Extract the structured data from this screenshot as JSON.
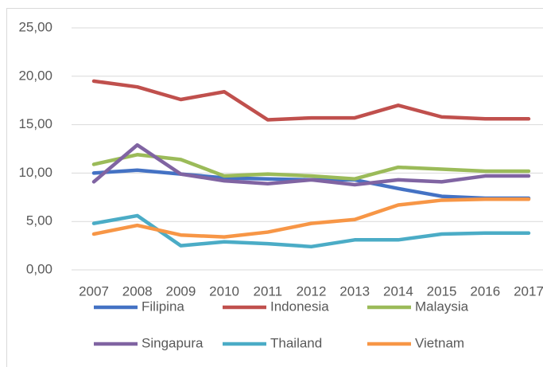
{
  "chart_data": {
    "type": "line",
    "categories": [
      "2007",
      "2008",
      "2009",
      "2010",
      "2011",
      "2012",
      "2013",
      "2014",
      "2015",
      "2016",
      "2017"
    ],
    "series": [
      {
        "name": "Filipina",
        "color": "#4472c4",
        "values": [
          10.0,
          10.3,
          9.9,
          9.5,
          9.4,
          9.3,
          9.3,
          8.4,
          7.6,
          7.4,
          7.4
        ]
      },
      {
        "name": "Indonesia",
        "color": "#c0504d",
        "values": [
          19.5,
          18.9,
          17.6,
          18.4,
          15.5,
          15.7,
          15.7,
          17.0,
          15.8,
          15.6,
          15.6
        ]
      },
      {
        "name": "Malaysia",
        "color": "#9bbb59",
        "values": [
          10.9,
          11.9,
          11.4,
          9.7,
          9.9,
          9.7,
          9.4,
          10.6,
          10.4,
          10.2,
          10.2
        ]
      },
      {
        "name": "Singapura",
        "color": "#8064a2",
        "values": [
          9.1,
          12.9,
          9.9,
          9.2,
          8.9,
          9.3,
          8.8,
          9.3,
          9.1,
          9.7,
          9.7
        ]
      },
      {
        "name": "Thailand",
        "color": "#4bacc6",
        "values": [
          4.8,
          5.6,
          2.5,
          2.9,
          2.7,
          2.4,
          3.1,
          3.1,
          3.7,
          3.8,
          3.8
        ]
      },
      {
        "name": "Vietnam",
        "color": "#f79646",
        "values": [
          3.7,
          4.6,
          3.6,
          3.4,
          3.9,
          4.8,
          5.2,
          6.7,
          7.2,
          7.3,
          7.3
        ]
      }
    ],
    "ylim": [
      0,
      25
    ],
    "yticks": [
      {
        "value": 0,
        "label": "0,00"
      },
      {
        "value": 5,
        "label": "5,00"
      },
      {
        "value": 10,
        "label": "10,00"
      },
      {
        "value": 15,
        "label": "15,00"
      },
      {
        "value": 20,
        "label": "20,00"
      },
      {
        "value": 25,
        "label": "25,00"
      }
    ],
    "grid": true,
    "legend": "bottom"
  }
}
